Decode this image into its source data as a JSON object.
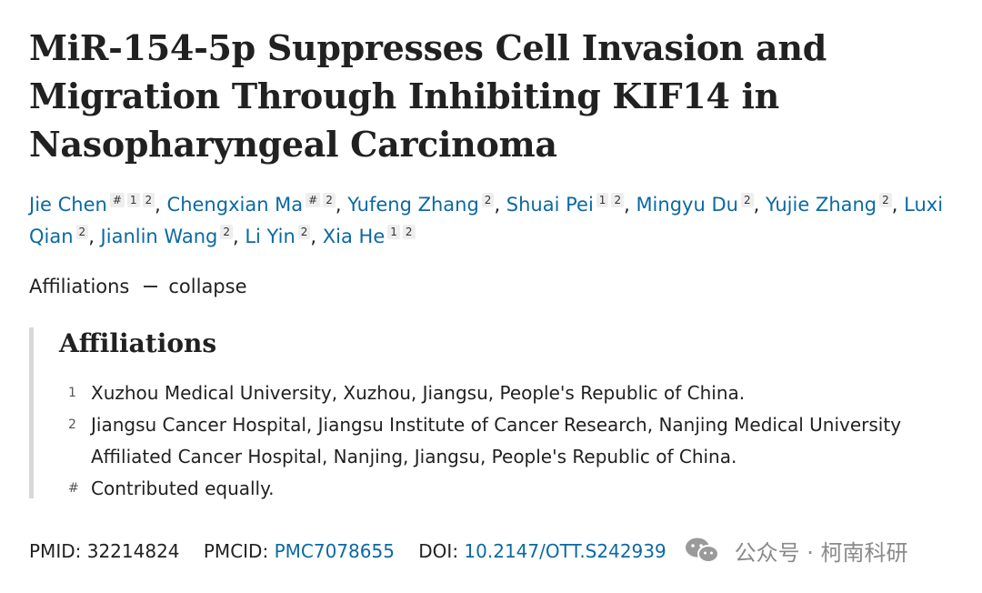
{
  "article": {
    "title": "MiR-154-5p Suppresses Cell Invasion and Migration Through Inhibiting KIF14 in Nasopharyngeal Carcinoma"
  },
  "authors": [
    {
      "name": "Jie Chen",
      "marks": [
        "#",
        "1",
        "2"
      ]
    },
    {
      "name": "Chengxian Ma",
      "marks": [
        "#",
        "2"
      ]
    },
    {
      "name": "Yufeng Zhang",
      "marks": [
        "2"
      ]
    },
    {
      "name": "Shuai Pei",
      "marks": [
        "1",
        "2"
      ]
    },
    {
      "name": "Mingyu Du",
      "marks": [
        "2"
      ]
    },
    {
      "name": "Yujie Zhang",
      "marks": [
        "2"
      ]
    },
    {
      "name": "Luxi Qian",
      "marks": [
        "2"
      ]
    },
    {
      "name": "Jianlin Wang",
      "marks": [
        "2"
      ]
    },
    {
      "name": "Li Yin",
      "marks": [
        "2"
      ]
    },
    {
      "name": "Xia He",
      "marks": [
        "1",
        "2"
      ]
    }
  ],
  "affiliations_toggle": {
    "label": "Affiliations",
    "action": "collapse"
  },
  "affiliations": {
    "heading": "Affiliations",
    "items": [
      {
        "marker": "1",
        "text": "Xuzhou Medical University, Xuzhou, Jiangsu, People's Republic of China."
      },
      {
        "marker": "2",
        "text": "Jiangsu Cancer Hospital, Jiangsu Institute of Cancer Research, Nanjing Medical University Affiliated Cancer Hospital, Nanjing, Jiangsu, People's Republic of China."
      },
      {
        "marker": "#",
        "text": "Contributed equally."
      }
    ]
  },
  "identifiers": {
    "pmid_label": "PMID:",
    "pmid": "32214824",
    "pmcid_label": "PMCID:",
    "pmcid": "PMC7078655",
    "doi_label": "DOI:",
    "doi": "10.2147/OTT.S242939"
  },
  "watermark": {
    "text": "公众号 · 柯南科研",
    "icon": "wechat-icon"
  },
  "colors": {
    "link": "#0b69a3",
    "text": "#212121",
    "border": "#d8d8d8"
  }
}
